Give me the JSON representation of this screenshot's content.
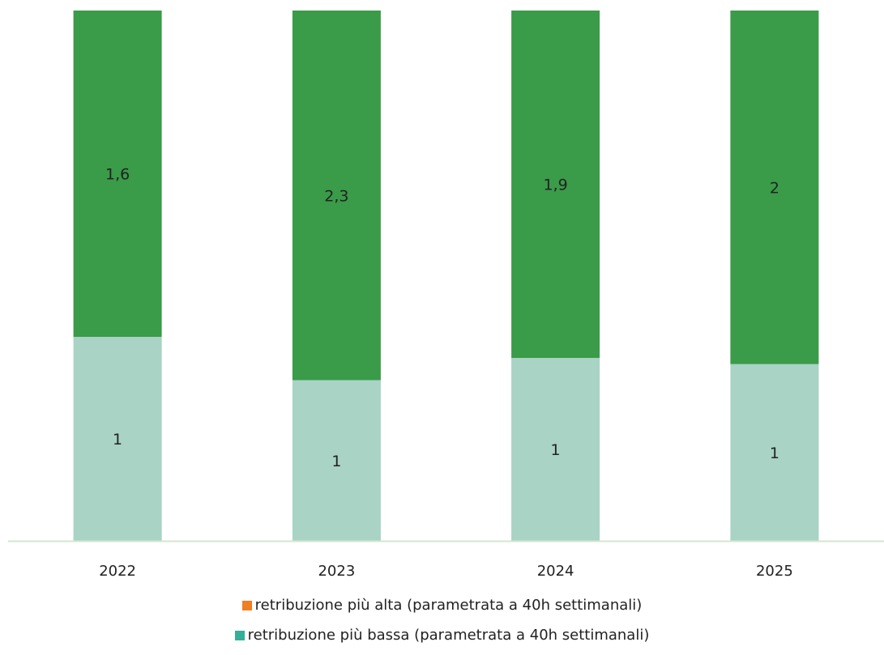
{
  "chart_data": {
    "type": "bar",
    "stacked": "percent",
    "categories": [
      "2022",
      "2023",
      "2024",
      "2025"
    ],
    "series": [
      {
        "name": "retribuzione più bassa (parametrata a 40h settimanali)",
        "values": [
          1,
          1,
          1,
          1
        ],
        "color": "#a8d3c5",
        "labels": [
          "1",
          "1",
          "1",
          "1"
        ]
      },
      {
        "name": "retribuzione più alta (parametrata a 40h settimanali)",
        "values": [
          1.6,
          2.3,
          1.9,
          2
        ],
        "color": "#3a9b49",
        "labels": [
          "1,6",
          "2,3",
          "1,9",
          "2"
        ]
      }
    ],
    "legend": [
      {
        "label": "retribuzione più alta (parametrata a 40h settimanali)",
        "color": "#f07f21"
      },
      {
        "label": "retribuzione più bassa (parametrata a 40h settimanali)",
        "color": "#37ae97"
      }
    ],
    "legend_position": "bottom",
    "axis_line_color": "#d3e6d4",
    "grid": false,
    "title": "",
    "xlabel": "",
    "ylabel": ""
  }
}
